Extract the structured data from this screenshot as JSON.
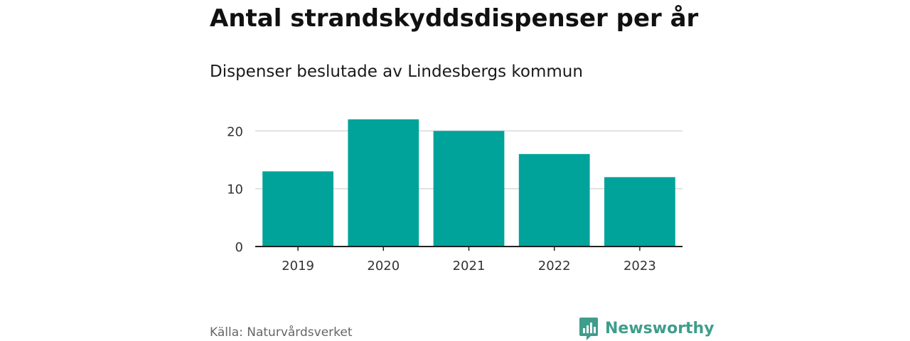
{
  "header": {
    "title": "Antal strandskyddsdispenser per år",
    "subtitle": "Dispenser beslutade av Lindesbergs kommun"
  },
  "footer": {
    "source": "Källa: Naturvårdsverket",
    "brand": "Newsworthy"
  },
  "colors": {
    "bar": "#00a39a",
    "grid": "#d9d9d9",
    "axis": "#222222",
    "brand": "#3f9d8c"
  },
  "chart_data": {
    "type": "bar",
    "title": "Antal strandskyddsdispenser per år",
    "subtitle": "Dispenser beslutade av Lindesbergs kommun",
    "categories": [
      "2019",
      "2020",
      "2021",
      "2022",
      "2023"
    ],
    "values": [
      13,
      22,
      20,
      16,
      12
    ],
    "xlabel": "",
    "ylabel": "",
    "ylim": [
      0,
      22
    ],
    "yticks": [
      0,
      10,
      20
    ],
    "grid": true,
    "legend": "none"
  }
}
